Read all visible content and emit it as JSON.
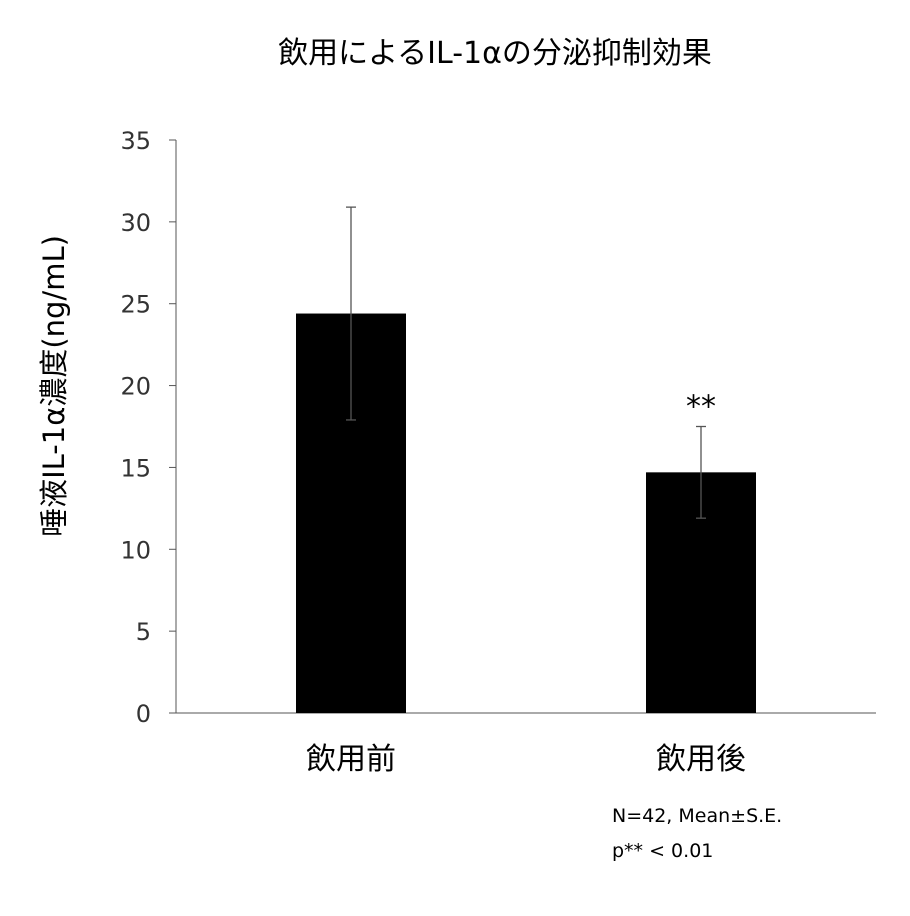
{
  "chart_data": {
    "type": "bar",
    "title": "飲用によるIL-1αの分泌抑制効果",
    "xlabel": "",
    "ylabel": "唾液IL-1α濃度(ng/mL)",
    "categories": [
      "飲用前",
      "飲用後"
    ],
    "values": [
      24.4,
      14.7
    ],
    "error_bars": [
      6.5,
      2.8
    ],
    "ylim": [
      0,
      35
    ],
    "yticks": [
      0,
      5,
      10,
      15,
      20,
      25,
      30,
      35
    ],
    "ytick_labels": [
      "0",
      "5",
      "10",
      "15",
      "20",
      "25",
      "30",
      "35"
    ],
    "bar_color": "#000000",
    "grid": false,
    "significance": [
      "",
      "**"
    ],
    "notes": [
      "N=42, Mean±S.E.",
      "p** < 0.01"
    ]
  }
}
